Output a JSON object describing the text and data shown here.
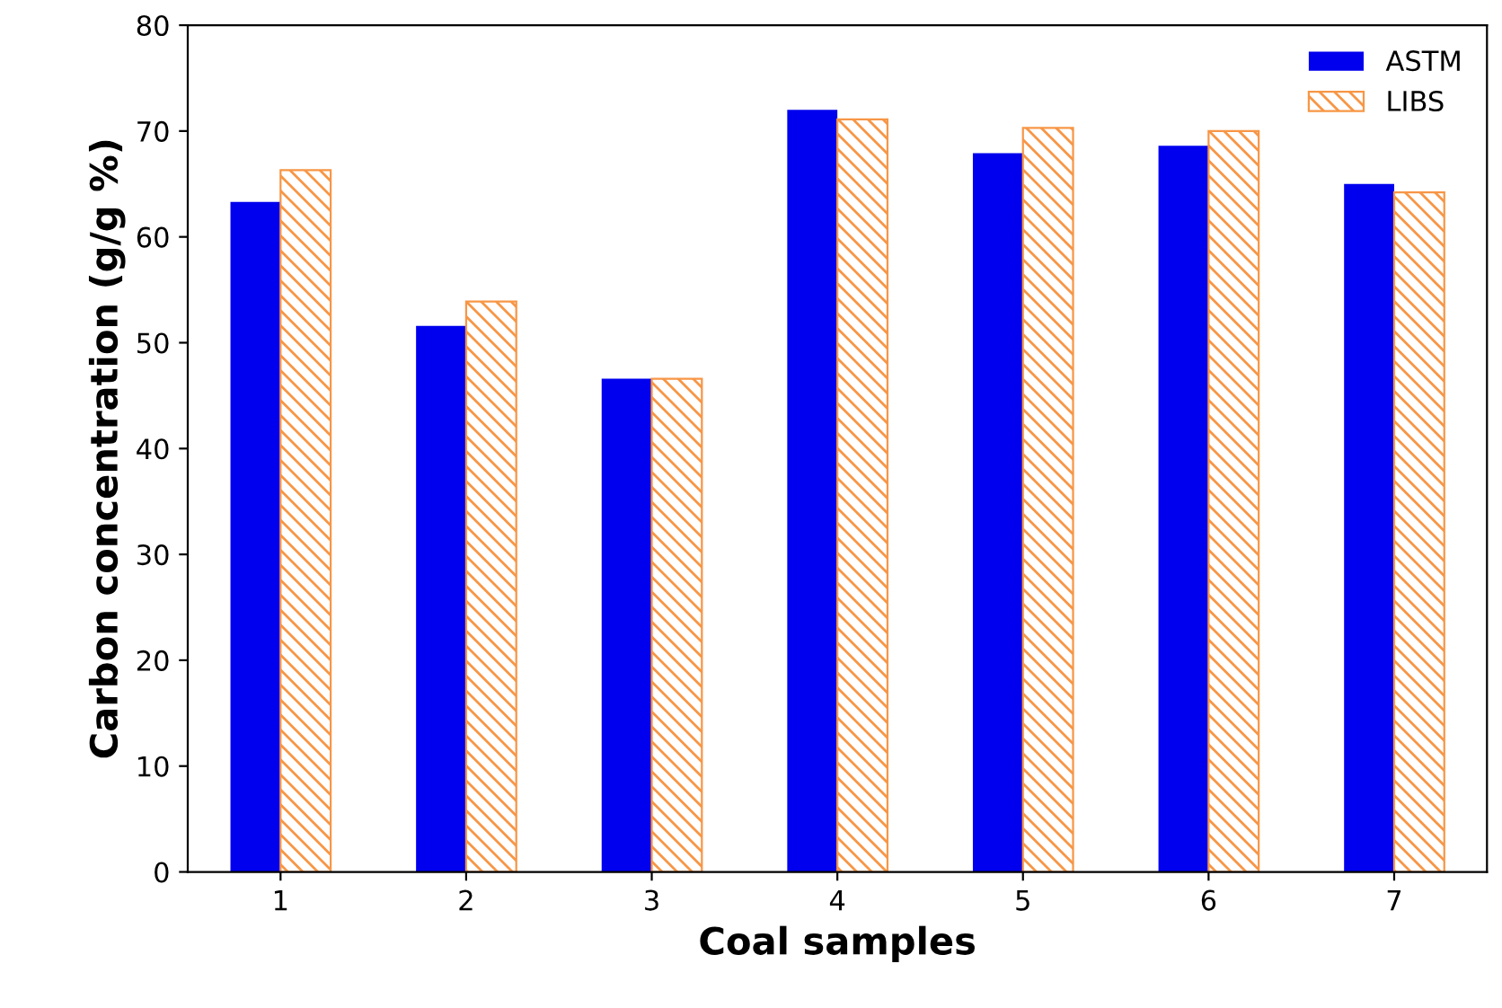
{
  "chart_data": {
    "type": "bar",
    "xlabel": "Coal samples",
    "ylabel": "Carbon concentration (g/g %)",
    "categories": [
      "1",
      "2",
      "3",
      "4",
      "5",
      "6",
      "7"
    ],
    "series": [
      {
        "name": "ASTM",
        "color": "#0000ee",
        "values": [
          63.3,
          51.6,
          46.6,
          72.0,
          67.9,
          68.6,
          65.0
        ]
      },
      {
        "name": "LIBS",
        "color": "#f79646",
        "values": [
          66.3,
          53.9,
          46.6,
          71.1,
          70.3,
          70.0,
          64.2
        ]
      }
    ],
    "ylim": [
      0,
      80
    ],
    "yticks": [
      0,
      10,
      20,
      30,
      40,
      50,
      60,
      70,
      80
    ],
    "grid": false,
    "legend": "top right"
  }
}
